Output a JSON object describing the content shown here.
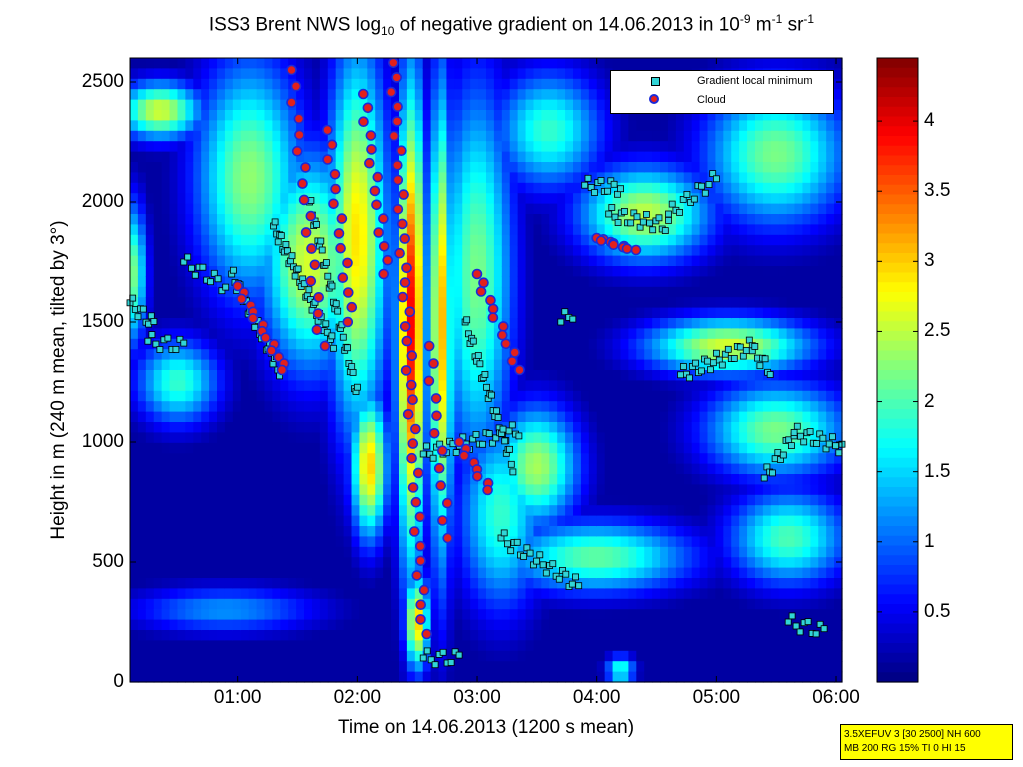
{
  "chart_data": {
    "type": "heatmap",
    "title_parts": {
      "pre": "ISS3 Brent NWS log",
      "sub": "10",
      "mid": " of negative gradient on 14.06.2013 in 10",
      "sup1": "-9",
      "mid2": " m",
      "sup2": "-1",
      "mid3": " sr",
      "sup3": "-1"
    },
    "xlabel": "Time on 14.06.2013 (1200 s mean)",
    "ylabel": "Height in m (240 m mean, tilted by 3°)",
    "x_range_hours": [
      0.1,
      6.05
    ],
    "ylim": [
      0,
      2600
    ],
    "x_ticks": [
      {
        "value": 1,
        "label": "01:00"
      },
      {
        "value": 2,
        "label": "02:00"
      },
      {
        "value": 3,
        "label": "03:00"
      },
      {
        "value": 4,
        "label": "04:00"
      },
      {
        "value": 5,
        "label": "05:00"
      },
      {
        "value": 6,
        "label": "06:00"
      }
    ],
    "y_ticks": [
      {
        "value": 0,
        "label": "0"
      },
      {
        "value": 500,
        "label": "500"
      },
      {
        "value": 1000,
        "label": "1000"
      },
      {
        "value": 1500,
        "label": "1500"
      },
      {
        "value": 2000,
        "label": "2000"
      },
      {
        "value": 2500,
        "label": "2500"
      }
    ],
    "colorbar": {
      "range": [
        0,
        4.45
      ],
      "colormap": "jet",
      "ticks": [
        {
          "value": 0.5,
          "label": "0.5"
        },
        {
          "value": 1,
          "label": "1"
        },
        {
          "value": 1.5,
          "label": "1.5"
        },
        {
          "value": 2,
          "label": "2"
        },
        {
          "value": 2.5,
          "label": "2.5"
        },
        {
          "value": 3,
          "label": "3"
        },
        {
          "value": 3.5,
          "label": "3.5"
        },
        {
          "value": 4,
          "label": "4"
        }
      ]
    },
    "legend": {
      "position": "top-right",
      "entries": [
        {
          "label": "Gradient local minimum",
          "marker": "square",
          "color": "#31d4d6"
        },
        {
          "label": "Cloud",
          "marker": "circle",
          "color": "#e2201c",
          "edge": "#1c2ad8"
        }
      ]
    },
    "background_level": 0.15,
    "field_blobs": [
      {
        "t": 0.35,
        "h": 2380,
        "rt": 0.35,
        "rh": 120,
        "v": 2.6
      },
      {
        "t": 0.12,
        "h": 1700,
        "rt": 0.12,
        "rh": 300,
        "v": 2.2
      },
      {
        "t": 0.5,
        "h": 1250,
        "rt": 0.35,
        "rh": 180,
        "v": 1.9
      },
      {
        "t": 1.1,
        "h": 2100,
        "rt": 0.45,
        "rh": 500,
        "v": 2.3
      },
      {
        "t": 1.6,
        "h": 1750,
        "rt": 0.4,
        "rh": 450,
        "v": 2.6
      },
      {
        "t": 2.0,
        "h": 1850,
        "rt": 0.25,
        "rh": 800,
        "v": 2.9
      },
      {
        "t": 2.1,
        "h": 900,
        "rt": 0.15,
        "rh": 300,
        "v": 3.0
      },
      {
        "t": 2.45,
        "h": 1500,
        "rt": 0.12,
        "rh": 1000,
        "v": 3.9
      },
      {
        "t": 2.7,
        "h": 1500,
        "rt": 0.1,
        "rh": 1000,
        "v": 3.1
      },
      {
        "t": 2.5,
        "h": 250,
        "rt": 0.1,
        "rh": 200,
        "v": 3.0
      },
      {
        "t": 3.0,
        "h": 1700,
        "rt": 0.3,
        "rh": 800,
        "v": 2.2
      },
      {
        "t": 3.5,
        "h": 900,
        "rt": 0.35,
        "rh": 250,
        "v": 2.4
      },
      {
        "t": 3.6,
        "h": 2300,
        "rt": 0.45,
        "rh": 250,
        "v": 1.9
      },
      {
        "t": 4.4,
        "h": 1950,
        "rt": 0.55,
        "rh": 200,
        "v": 2.5
      },
      {
        "t": 5.5,
        "h": 2200,
        "rt": 0.6,
        "rh": 300,
        "v": 2.2
      },
      {
        "t": 5.1,
        "h": 1400,
        "rt": 0.7,
        "rh": 120,
        "v": 2.6
      },
      {
        "t": 5.5,
        "h": 1050,
        "rt": 0.6,
        "rh": 200,
        "v": 2.2
      },
      {
        "t": 4.0,
        "h": 520,
        "rt": 0.8,
        "rh": 150,
        "v": 2.1
      },
      {
        "t": 5.6,
        "h": 600,
        "rt": 0.5,
        "rh": 200,
        "v": 2.0
      },
      {
        "t": 0.9,
        "h": 300,
        "rt": 0.8,
        "rh": 100,
        "v": 1.2
      },
      {
        "t": 4.2,
        "h": 50,
        "rt": 0.12,
        "rh": 60,
        "v": 1.9
      },
      {
        "t": 3.2,
        "h": 700,
        "rt": 0.35,
        "rh": 400,
        "v": 1.9
      }
    ],
    "gradient_minima_tracks": [
      {
        "start": [
          0.1,
          1580
        ],
        "end": [
          0.3,
          1490
        ],
        "n": 10
      },
      {
        "start": [
          0.25,
          1420
        ],
        "end": [
          0.55,
          1400
        ],
        "n": 10
      },
      {
        "start": [
          0.55,
          1750
        ],
        "end": [
          0.9,
          1650
        ],
        "n": 12
      },
      {
        "start": [
          0.95,
          1700
        ],
        "end": [
          1.35,
          1300
        ],
        "n": 30
      },
      {
        "start": [
          1.3,
          1900
        ],
        "end": [
          1.8,
          1400
        ],
        "n": 40
      },
      {
        "start": [
          1.6,
          2000
        ],
        "end": [
          2.0,
          1200
        ],
        "n": 35
      },
      {
        "start": [
          2.55,
          950
        ],
        "end": [
          3.35,
          1050
        ],
        "n": 30
      },
      {
        "start": [
          2.9,
          1500
        ],
        "end": [
          3.3,
          900
        ],
        "n": 30
      },
      {
        "start": [
          2.55,
          100
        ],
        "end": [
          2.85,
          100
        ],
        "n": 10
      },
      {
        "start": [
          3.2,
          600
        ],
        "end": [
          3.85,
          400
        ],
        "n": 25
      },
      {
        "start": [
          3.9,
          2070
        ],
        "end": [
          4.2,
          2060
        ],
        "n": 12
      },
      {
        "start": [
          4.1,
          1950
        ],
        "end": [
          4.6,
          1900
        ],
        "n": 20
      },
      {
        "start": [
          4.6,
          1950
        ],
        "end": [
          5.0,
          2100
        ],
        "n": 14
      },
      {
        "start": [
          4.7,
          1280
        ],
        "end": [
          5.3,
          1400
        ],
        "n": 25
      },
      {
        "start": [
          5.3,
          1380
        ],
        "end": [
          5.45,
          1300
        ],
        "n": 8
      },
      {
        "start": [
          5.4,
          850
        ],
        "end": [
          5.65,
          1030
        ],
        "n": 12
      },
      {
        "start": [
          5.65,
          1040
        ],
        "end": [
          6.05,
          980
        ],
        "n": 16
      },
      {
        "start": [
          5.6,
          250
        ],
        "end": [
          5.9,
          210
        ],
        "n": 10
      },
      {
        "start": [
          3.7,
          1500
        ],
        "end": [
          3.8,
          1540
        ],
        "n": 4
      }
    ],
    "cloud_points": [
      {
        "start": [
          1.0,
          1650
        ],
        "end": [
          1.4,
          1300
        ],
        "n": 14
      },
      {
        "start": [
          1.45,
          2550
        ],
        "end": [
          1.7,
          1400
        ],
        "n": 18
      },
      {
        "start": [
          1.75,
          2300
        ],
        "end": [
          1.95,
          1500
        ],
        "n": 14
      },
      {
        "start": [
          2.05,
          2450
        ],
        "end": [
          2.25,
          1700
        ],
        "n": 14
      },
      {
        "start": [
          2.3,
          2580
        ],
        "end": [
          2.55,
          200
        ],
        "n": 40
      },
      {
        "start": [
          2.6,
          1400
        ],
        "end": [
          2.75,
          600
        ],
        "n": 12
      },
      {
        "start": [
          3.0,
          1700
        ],
        "end": [
          3.35,
          1300
        ],
        "n": 12
      },
      {
        "start": [
          2.85,
          1000
        ],
        "end": [
          3.1,
          800
        ],
        "n": 8
      },
      {
        "start": [
          4.0,
          1850
        ],
        "end": [
          4.3,
          1800
        ],
        "n": 10
      }
    ]
  },
  "infobox": {
    "line1": "3.5XEFUV 3 [30 2500] NH 600",
    "line2": "MB 200 RG 15% TI 0 HI 15"
  },
  "colors": {
    "frame": "#000000",
    "minimum_fill": "#31d4d6",
    "cloud_fill": "#e2201c",
    "cloud_edge": "#1c2ad8",
    "infobox_bg": "#ffff00"
  }
}
